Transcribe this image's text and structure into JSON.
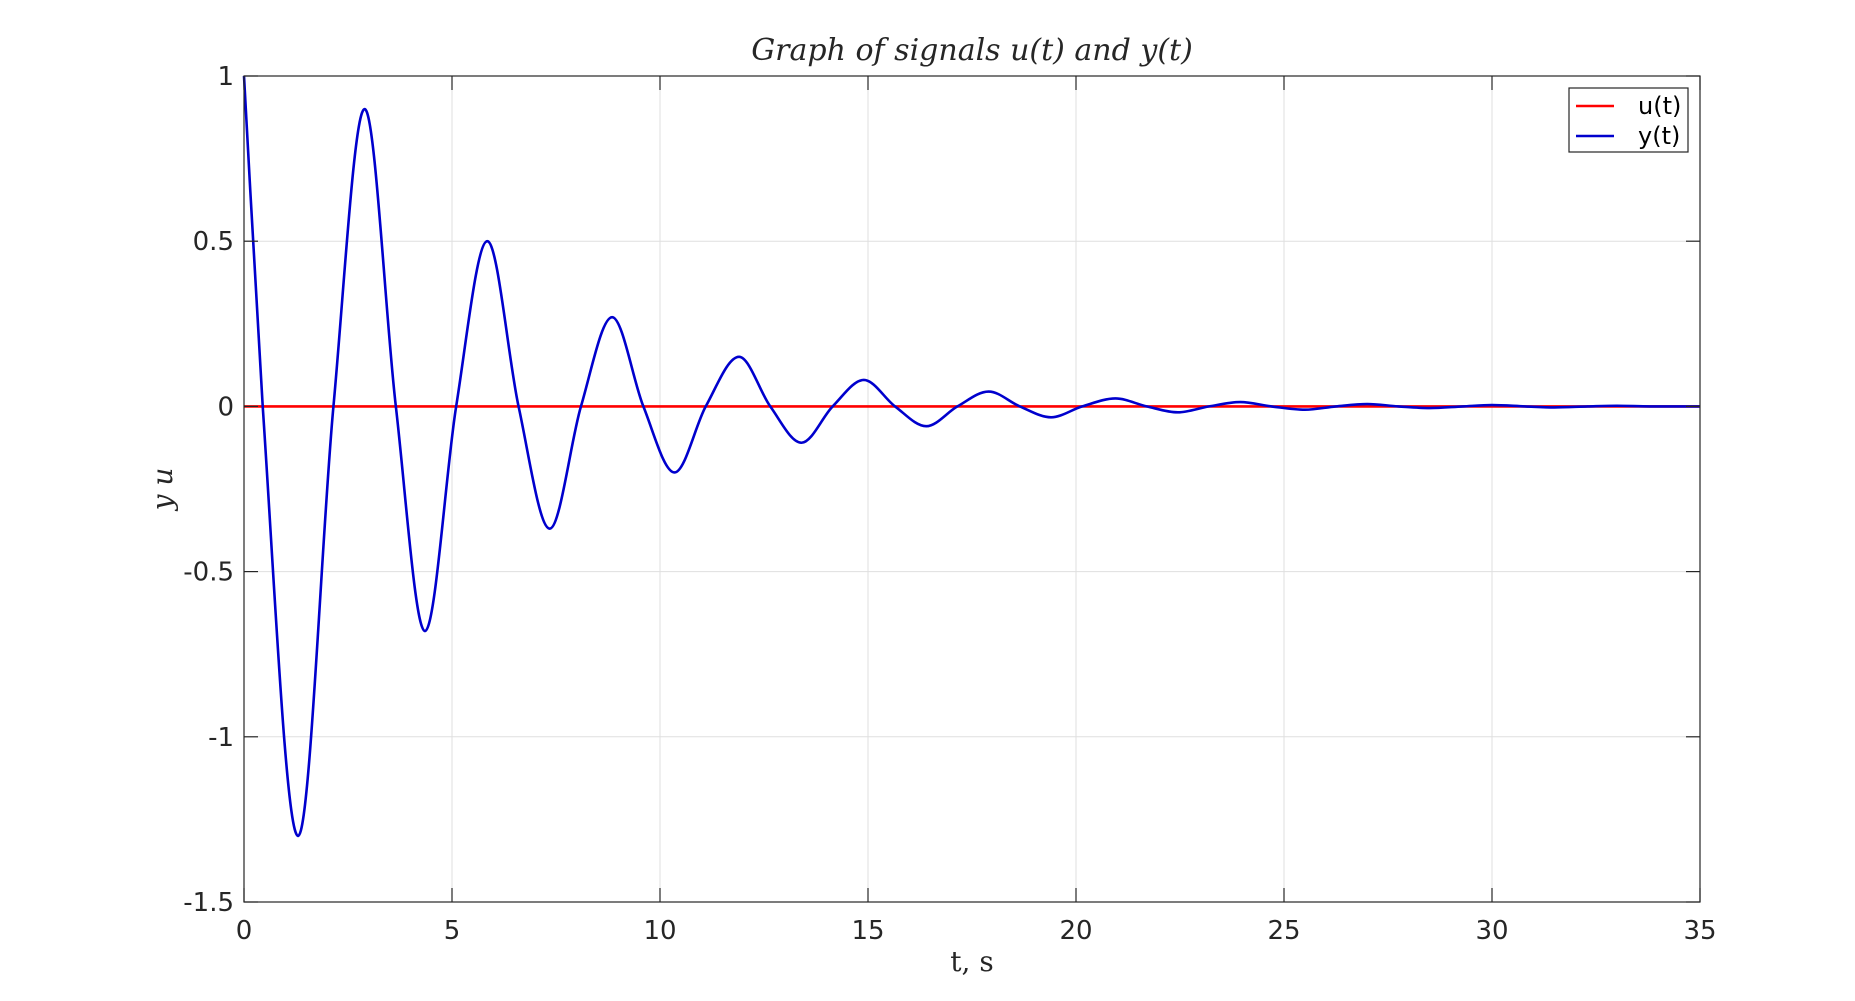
{
  "chart_data": {
    "type": "line",
    "title": "Graph of signals u(t) and y(t)",
    "xlabel": "t, s",
    "ylabel": "y u",
    "xlim": [
      0,
      35
    ],
    "ylim": [
      -1.5,
      1
    ],
    "xticks": [
      0,
      5,
      10,
      15,
      20,
      25,
      30,
      35
    ],
    "yticks": [
      -1.5,
      -1,
      -0.5,
      0,
      0.5,
      1
    ],
    "xtick_labels": [
      "0",
      "5",
      "10",
      "15",
      "20",
      "25",
      "30",
      "35"
    ],
    "ytick_labels": [
      "-1.5",
      "-1",
      "-0.5",
      "0",
      "0.5",
      "1"
    ],
    "grid": true,
    "legend_position": "top-right",
    "series": [
      {
        "name": "u(t)",
        "color": "#ff0000",
        "x": [
          0,
          35
        ],
        "y": [
          0,
          0
        ]
      },
      {
        "name": "y(t)",
        "color": "#0000cd",
        "x": [
          0,
          0.45,
          1.3,
          2.15,
          2.9,
          3.65,
          4.35,
          5.1,
          5.85,
          6.6,
          7.35,
          8.1,
          8.85,
          9.6,
          10.35,
          11.1,
          11.9,
          12.65,
          13.4,
          14.15,
          14.9,
          15.65,
          16.4,
          17.15,
          17.9,
          18.65,
          19.4,
          20.15,
          20.95,
          21.7,
          22.45,
          23.2,
          23.95,
          24.7,
          25.5,
          26.25,
          27.0,
          27.75,
          28.5,
          29.3,
          30.0,
          30.8,
          31.5,
          32.3,
          33.0,
          33.8,
          35
        ],
        "y": [
          1.0,
          0,
          -1.3,
          0,
          0.9,
          0,
          -0.68,
          0,
          0.5,
          0,
          -0.37,
          0,
          0.27,
          0,
          -0.2,
          0,
          0.15,
          0,
          -0.11,
          0,
          0.08,
          0,
          -0.06,
          0,
          0.045,
          0,
          -0.033,
          0,
          0.024,
          0,
          -0.018,
          0,
          0.013,
          0,
          -0.01,
          0,
          0.007,
          0,
          -0.005,
          0,
          0.004,
          0,
          -0.003,
          0,
          0.002,
          0,
          0
        ]
      }
    ]
  }
}
